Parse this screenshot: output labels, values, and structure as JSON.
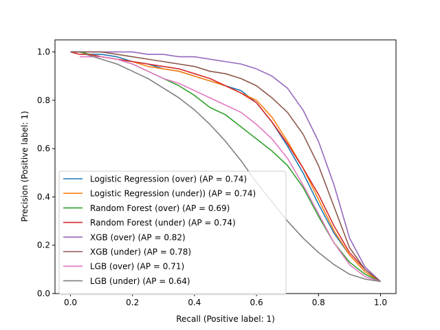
{
  "chart_data": {
    "type": "line",
    "title": "",
    "xlabel": "Recall (Positive label: 1)",
    "ylabel": "Precision (Positive label: 1)",
    "xlim": [
      -0.05,
      1.05
    ],
    "ylim": [
      0.0,
      1.05
    ],
    "xticks": [
      "0.0",
      "0.2",
      "0.4",
      "0.6",
      "0.8",
      "1.0"
    ],
    "yticks": [
      "0.0",
      "0.2",
      "0.4",
      "0.6",
      "0.8",
      "1.0"
    ],
    "grid": false,
    "legend_position": "lower-left",
    "series": [
      {
        "name": "Logistic Regression (over) (AP = 0.74)",
        "color": "#1f77b4",
        "x": [
          0.0,
          0.03,
          0.06,
          0.1,
          0.15,
          0.2,
          0.25,
          0.3,
          0.35,
          0.4,
          0.45,
          0.5,
          0.55,
          0.57,
          0.6,
          0.65,
          0.7,
          0.75,
          0.8,
          0.85,
          0.9,
          0.95,
          1.0
        ],
        "y": [
          1.0,
          1.0,
          0.99,
          0.99,
          0.98,
          0.96,
          0.95,
          0.93,
          0.92,
          0.9,
          0.88,
          0.86,
          0.84,
          0.82,
          0.79,
          0.71,
          0.61,
          0.5,
          0.37,
          0.25,
          0.16,
          0.09,
          0.05
        ]
      },
      {
        "name": "Logistic Regression (under)) (AP = 0.74)",
        "color": "#ff7f0e",
        "x": [
          0.0,
          0.03,
          0.06,
          0.1,
          0.15,
          0.2,
          0.25,
          0.3,
          0.35,
          0.4,
          0.45,
          0.5,
          0.55,
          0.6,
          0.65,
          0.7,
          0.75,
          0.8,
          0.85,
          0.9,
          0.95,
          1.0
        ],
        "y": [
          1.0,
          1.0,
          0.99,
          0.98,
          0.97,
          0.96,
          0.94,
          0.93,
          0.92,
          0.9,
          0.88,
          0.86,
          0.83,
          0.8,
          0.73,
          0.63,
          0.52,
          0.39,
          0.26,
          0.16,
          0.09,
          0.05
        ]
      },
      {
        "name": "Random Forest (over) (AP = 0.69)",
        "color": "#2ca02c",
        "x": [
          0.0,
          0.03,
          0.06,
          0.1,
          0.15,
          0.2,
          0.25,
          0.3,
          0.35,
          0.4,
          0.45,
          0.5,
          0.55,
          0.6,
          0.65,
          0.7,
          0.75,
          0.8,
          0.85,
          0.9,
          0.95,
          1.0
        ],
        "y": [
          1.0,
          1.0,
          0.99,
          0.98,
          0.97,
          0.95,
          0.92,
          0.89,
          0.86,
          0.82,
          0.77,
          0.74,
          0.69,
          0.64,
          0.59,
          0.53,
          0.44,
          0.32,
          0.21,
          0.13,
          0.08,
          0.05
        ]
      },
      {
        "name": "Random Forest (under) (AP = 0.74)",
        "color": "#d62728",
        "x": [
          0.0,
          0.03,
          0.06,
          0.1,
          0.15,
          0.2,
          0.25,
          0.3,
          0.35,
          0.4,
          0.45,
          0.5,
          0.55,
          0.6,
          0.65,
          0.7,
          0.75,
          0.8,
          0.85,
          0.9,
          0.95,
          1.0
        ],
        "y": [
          1.0,
          0.99,
          0.99,
          0.98,
          0.97,
          0.96,
          0.95,
          0.94,
          0.93,
          0.91,
          0.89,
          0.86,
          0.83,
          0.79,
          0.71,
          0.62,
          0.52,
          0.41,
          0.28,
          0.17,
          0.1,
          0.05
        ]
      },
      {
        "name": "XGB (over) (AP = 0.82)",
        "color": "#9467bd",
        "x": [
          0.0,
          0.05,
          0.1,
          0.15,
          0.2,
          0.25,
          0.3,
          0.35,
          0.4,
          0.45,
          0.5,
          0.55,
          0.6,
          0.65,
          0.7,
          0.75,
          0.8,
          0.85,
          0.9,
          0.95,
          1.0
        ],
        "y": [
          1.0,
          1.0,
          1.0,
          1.0,
          1.0,
          0.99,
          0.99,
          0.98,
          0.98,
          0.97,
          0.96,
          0.95,
          0.93,
          0.9,
          0.85,
          0.76,
          0.63,
          0.45,
          0.23,
          0.11,
          0.05
        ]
      },
      {
        "name": "XGB (under) (AP = 0.78)",
        "color": "#8c564b",
        "x": [
          0.0,
          0.05,
          0.1,
          0.15,
          0.2,
          0.25,
          0.3,
          0.35,
          0.4,
          0.45,
          0.5,
          0.55,
          0.6,
          0.65,
          0.7,
          0.75,
          0.8,
          0.85,
          0.9,
          0.95,
          1.0
        ],
        "y": [
          1.0,
          1.0,
          1.0,
          0.99,
          0.98,
          0.97,
          0.96,
          0.95,
          0.94,
          0.92,
          0.91,
          0.89,
          0.86,
          0.81,
          0.75,
          0.66,
          0.53,
          0.36,
          0.19,
          0.1,
          0.05
        ]
      },
      {
        "name": "LGB (over) (AP = 0.71)",
        "color": "#e377c2",
        "x": [
          0.03,
          0.05,
          0.1,
          0.15,
          0.2,
          0.25,
          0.3,
          0.35,
          0.4,
          0.45,
          0.5,
          0.55,
          0.6,
          0.65,
          0.7,
          0.75,
          0.8,
          0.85,
          0.9,
          0.95,
          1.0
        ],
        "y": [
          0.98,
          0.98,
          0.98,
          0.97,
          0.95,
          0.92,
          0.89,
          0.87,
          0.84,
          0.81,
          0.78,
          0.75,
          0.7,
          0.64,
          0.56,
          0.45,
          0.33,
          0.21,
          0.12,
          0.07,
          0.05
        ]
      },
      {
        "name": "LGB (under) (AP = 0.64)",
        "color": "#7f7f7f",
        "x": [
          0.05,
          0.1,
          0.15,
          0.2,
          0.25,
          0.3,
          0.35,
          0.4,
          0.45,
          0.5,
          0.55,
          0.6,
          0.65,
          0.7,
          0.75,
          0.8,
          0.85,
          0.9,
          0.95,
          1.0
        ],
        "y": [
          0.99,
          0.97,
          0.95,
          0.92,
          0.89,
          0.85,
          0.81,
          0.76,
          0.7,
          0.63,
          0.55,
          0.46,
          0.38,
          0.3,
          0.23,
          0.17,
          0.12,
          0.08,
          0.06,
          0.05
        ]
      }
    ]
  }
}
